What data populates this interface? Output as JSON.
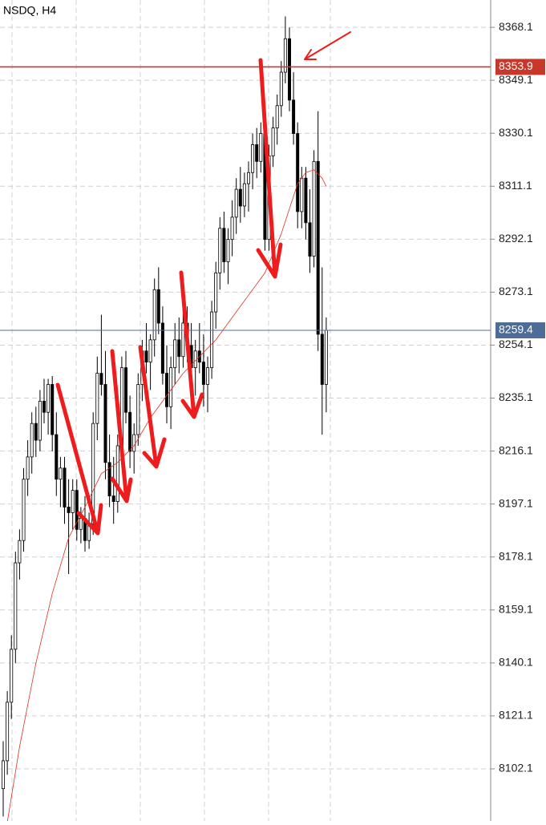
{
  "chart_data": {
    "type": "candlestick",
    "title": "NSDQ, H4",
    "ylim": [
      8083.4,
      8377.9
    ],
    "yticks": [
      8368.1,
      8349.1,
      8330.1,
      8311.1,
      8292.1,
      8273.1,
      8254.1,
      8235.1,
      8216.1,
      8197.1,
      8178.1,
      8159.1,
      8140.1,
      8121.1,
      8102.1
    ],
    "grid": true,
    "open": [
      8095,
      8105,
      8126,
      8145,
      8176,
      8184,
      8206,
      8214,
      8226,
      8220,
      8234,
      8230,
      8240,
      8222,
      8206,
      8210,
      8196,
      8194,
      8202,
      8188,
      8192,
      8184,
      8190,
      8226,
      8244,
      8240,
      8212,
      8200,
      8198,
      8218,
      8246,
      8230,
      8216,
      8222,
      8240,
      8252,
      8248,
      8256,
      8274,
      8262,
      8244,
      8232,
      8246,
      8256,
      8250,
      8262,
      8254,
      8246,
      8252,
      8248,
      8240,
      8246,
      8266,
      8280,
      8296,
      8284,
      8292,
      8300,
      8310,
      8304,
      8312,
      8316,
      8326,
      8320,
      8330,
      8292,
      8322,
      8332,
      8340,
      8352,
      8364,
      8342,
      8330,
      8302,
      8314,
      8298,
      8286,
      8320,
      8258,
      8240
    ],
    "high": [
      8112,
      8130,
      8150,
      8180,
      8188,
      8210,
      8220,
      8230,
      8232,
      8238,
      8242,
      8242,
      8243,
      8230,
      8214,
      8214,
      8206,
      8206,
      8206,
      8196,
      8200,
      8194,
      8230,
      8250,
      8265,
      8252,
      8222,
      8214,
      8222,
      8250,
      8252,
      8236,
      8226,
      8244,
      8256,
      8262,
      8258,
      8278,
      8282,
      8268,
      8254,
      8250,
      8262,
      8264,
      8268,
      8268,
      8262,
      8256,
      8262,
      8258,
      8250,
      8270,
      8284,
      8300,
      8302,
      8296,
      8306,
      8314,
      8318,
      8316,
      8320,
      8330,
      8332,
      8334,
      8334,
      8326,
      8336,
      8344,
      8356,
      8372,
      8368,
      8352,
      8334,
      8318,
      8318,
      8310,
      8324,
      8338,
      8282,
      8264
    ],
    "low": [
      8085,
      8100,
      8120,
      8140,
      8170,
      8180,
      8200,
      8208,
      8214,
      8216,
      8226,
      8222,
      8216,
      8200,
      8196,
      8190,
      8172,
      8188,
      8184,
      8183,
      8180,
      8181,
      8186,
      8220,
      8236,
      8206,
      8196,
      8190,
      8194,
      8214,
      8226,
      8210,
      8208,
      8218,
      8234,
      8244,
      8238,
      8250,
      8258,
      8240,
      8226,
      8224,
      8240,
      8244,
      8246,
      8248,
      8240,
      8236,
      8244,
      8232,
      8230,
      8242,
      8260,
      8274,
      8280,
      8276,
      8286,
      8294,
      8298,
      8300,
      8302,
      8310,
      8314,
      8316,
      8288,
      8288,
      8318,
      8326,
      8336,
      8348,
      8338,
      8326,
      8296,
      8296,
      8292,
      8280,
      8282,
      8252,
      8222,
      8230
    ],
    "close": [
      8105,
      8126,
      8145,
      8176,
      8184,
      8206,
      8214,
      8226,
      8220,
      8234,
      8230,
      8240,
      8222,
      8206,
      8210,
      8196,
      8194,
      8202,
      8188,
      8192,
      8184,
      8190,
      8226,
      8244,
      8240,
      8212,
      8200,
      8198,
      8218,
      8246,
      8230,
      8216,
      8222,
      8240,
      8252,
      8248,
      8256,
      8274,
      8262,
      8244,
      8232,
      8246,
      8256,
      8250,
      8262,
      8254,
      8246,
      8252,
      8248,
      8240,
      8246,
      8266,
      8280,
      8296,
      8284,
      8292,
      8300,
      8310,
      8304,
      8312,
      8316,
      8326,
      8320,
      8330,
      8292,
      8322,
      8332,
      8340,
      8352,
      8364,
      8342,
      8330,
      8302,
      8314,
      8298,
      8286,
      8320,
      8258,
      8240,
      8259.4
    ],
    "ma": {
      "color": "#e03020",
      "x": [
        1,
        4,
        8,
        12,
        16,
        20,
        24,
        28,
        32,
        36,
        40,
        44,
        48,
        52,
        56,
        60,
        64,
        68,
        72,
        74,
        76,
        78,
        79
      ],
      "values": [
        8083,
        8110,
        8140,
        8165,
        8185,
        8196,
        8208,
        8212,
        8218,
        8228,
        8236,
        8244,
        8250,
        8256,
        8264,
        8272,
        8280,
        8294,
        8312,
        8316,
        8317,
        8314,
        8311
      ]
    },
    "price_lines": [
      {
        "value": 8353.9,
        "color": "#c8382a"
      },
      {
        "value": 8259.4,
        "color": "#4d6d98"
      }
    ]
  }
}
